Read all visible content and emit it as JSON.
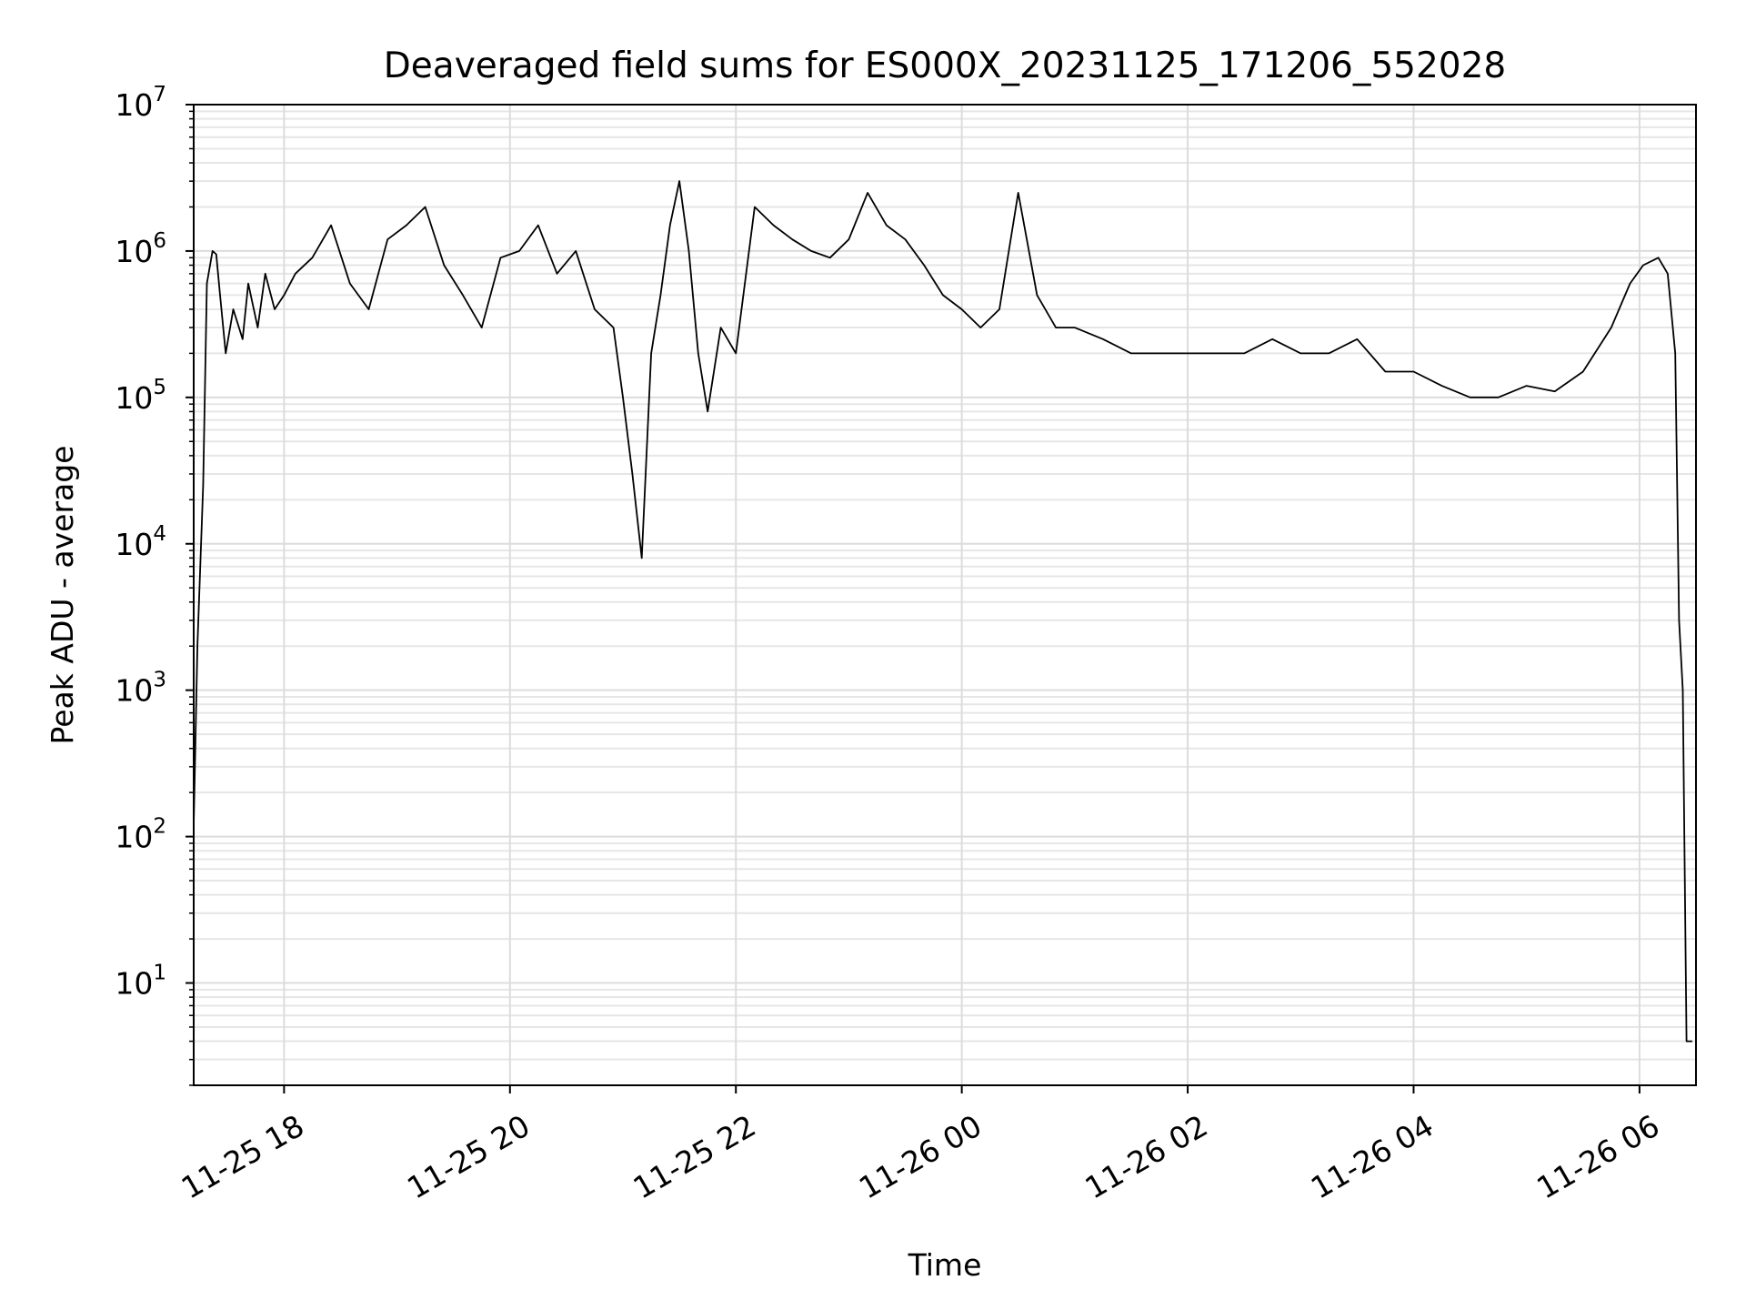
{
  "chart_data": {
    "type": "line",
    "title": "Deaveraged field sums for ES000X_20231125_171206_552028",
    "xlabel": "Time",
    "ylabel": "Peak ADU - average",
    "yscale": "log",
    "ylim": [
      2,
      10000000
    ],
    "xlim": [
      "2023-11-25 17:12",
      "2023-11-26 06:30"
    ],
    "grid": true,
    "color": "#000000",
    "x_ticks": [
      {
        "value": "2023-11-25 18:00",
        "label": "11-25 18"
      },
      {
        "value": "2023-11-25 20:00",
        "label": "11-25 20"
      },
      {
        "value": "2023-11-25 22:00",
        "label": "11-25 22"
      },
      {
        "value": "2023-11-26 00:00",
        "label": "11-26 00"
      },
      {
        "value": "2023-11-26 02:00",
        "label": "11-26 02"
      },
      {
        "value": "2023-11-26 04:00",
        "label": "11-26 04"
      },
      {
        "value": "2023-11-26 06:00",
        "label": "11-26 06"
      }
    ],
    "y_ticks": [
      {
        "value": 10,
        "base": "10",
        "exp": "1"
      },
      {
        "value": 100,
        "base": "10",
        "exp": "2"
      },
      {
        "value": 1000,
        "base": "10",
        "exp": "3"
      },
      {
        "value": 10000,
        "base": "10",
        "exp": "4"
      },
      {
        "value": 100000,
        "base": "10",
        "exp": "5"
      },
      {
        "value": 1000000,
        "base": "10",
        "exp": "6"
      },
      {
        "value": 10000000,
        "base": "10",
        "exp": "7"
      }
    ],
    "series": [
      {
        "x": [
          "2023-11-25 17:12",
          "2023-11-25 17:14",
          "2023-11-25 17:17",
          "2023-11-25 17:19",
          "2023-11-25 17:22",
          "2023-11-25 17:24",
          "2023-11-25 17:26",
          "2023-11-25 17:29",
          "2023-11-25 17:33",
          "2023-11-25 17:38",
          "2023-11-25 17:41",
          "2023-11-25 17:46",
          "2023-11-25 17:50",
          "2023-11-25 17:55",
          "2023-11-25 18:00",
          "2023-11-25 18:06",
          "2023-11-25 18:15",
          "2023-11-25 18:25",
          "2023-11-25 18:35",
          "2023-11-25 18:45",
          "2023-11-25 18:55",
          "2023-11-25 19:05",
          "2023-11-25 19:15",
          "2023-11-25 19:25",
          "2023-11-25 19:35",
          "2023-11-25 19:45",
          "2023-11-25 19:55",
          "2023-11-25 20:05",
          "2023-11-25 20:15",
          "2023-11-25 20:25",
          "2023-11-25 20:35",
          "2023-11-25 20:45",
          "2023-11-25 20:55",
          "2023-11-25 21:00",
          "2023-11-25 21:05",
          "2023-11-25 21:10",
          "2023-11-25 21:15",
          "2023-11-25 21:20",
          "2023-11-25 21:25",
          "2023-11-25 21:30",
          "2023-11-25 21:35",
          "2023-11-25 21:40",
          "2023-11-25 21:45",
          "2023-11-25 21:52",
          "2023-11-25 22:00",
          "2023-11-25 22:10",
          "2023-11-25 22:20",
          "2023-11-25 22:30",
          "2023-11-25 22:40",
          "2023-11-25 22:50",
          "2023-11-25 23:00",
          "2023-11-25 23:10",
          "2023-11-25 23:20",
          "2023-11-25 23:30",
          "2023-11-25 23:40",
          "2023-11-25 23:50",
          "2023-11-26 00:00",
          "2023-11-26 00:10",
          "2023-11-26 00:20",
          "2023-11-26 00:30",
          "2023-11-26 00:40",
          "2023-11-26 00:50",
          "2023-11-26 01:00",
          "2023-11-26 01:15",
          "2023-11-26 01:30",
          "2023-11-26 01:45",
          "2023-11-26 02:00",
          "2023-11-26 02:15",
          "2023-11-26 02:30",
          "2023-11-26 02:45",
          "2023-11-26 03:00",
          "2023-11-26 03:15",
          "2023-11-26 03:30",
          "2023-11-26 03:45",
          "2023-11-26 04:00",
          "2023-11-26 04:15",
          "2023-11-26 04:30",
          "2023-11-26 04:45",
          "2023-11-26 05:00",
          "2023-11-26 05:15",
          "2023-11-26 05:30",
          "2023-11-26 05:45",
          "2023-11-26 05:55",
          "2023-11-26 06:02",
          "2023-11-26 06:10",
          "2023-11-26 06:15",
          "2023-11-26 06:19",
          "2023-11-26 06:21",
          "2023-11-26 06:23",
          "2023-11-26 06:25",
          "2023-11-26 06:28"
        ],
        "y": [
          120,
          2000,
          25000,
          600000,
          1000000,
          950000,
          500000,
          200000,
          400000,
          250000,
          600000,
          300000,
          700000,
          400000,
          500000,
          700000,
          900000,
          1500000,
          600000,
          400000,
          1200000,
          1500000,
          2000000,
          800000,
          500000,
          300000,
          900000,
          1000000,
          1500000,
          700000,
          1000000,
          400000,
          300000,
          100000,
          30000,
          8000,
          200000,
          500000,
          1500000,
          3000000,
          1000000,
          200000,
          80000,
          300000,
          200000,
          2000000,
          1500000,
          1200000,
          1000000,
          900000,
          1200000,
          2500000,
          1500000,
          1200000,
          800000,
          500000,
          400000,
          300000,
          400000,
          2500000,
          500000,
          300000,
          300000,
          250000,
          200000,
          200000,
          200000,
          200000,
          200000,
          250000,
          200000,
          200000,
          250000,
          150000,
          150000,
          120000,
          100000,
          100000,
          120000,
          110000,
          150000,
          300000,
          600000,
          800000,
          900000,
          700000,
          200000,
          3000,
          1000,
          4,
          4
        ]
      }
    ]
  }
}
